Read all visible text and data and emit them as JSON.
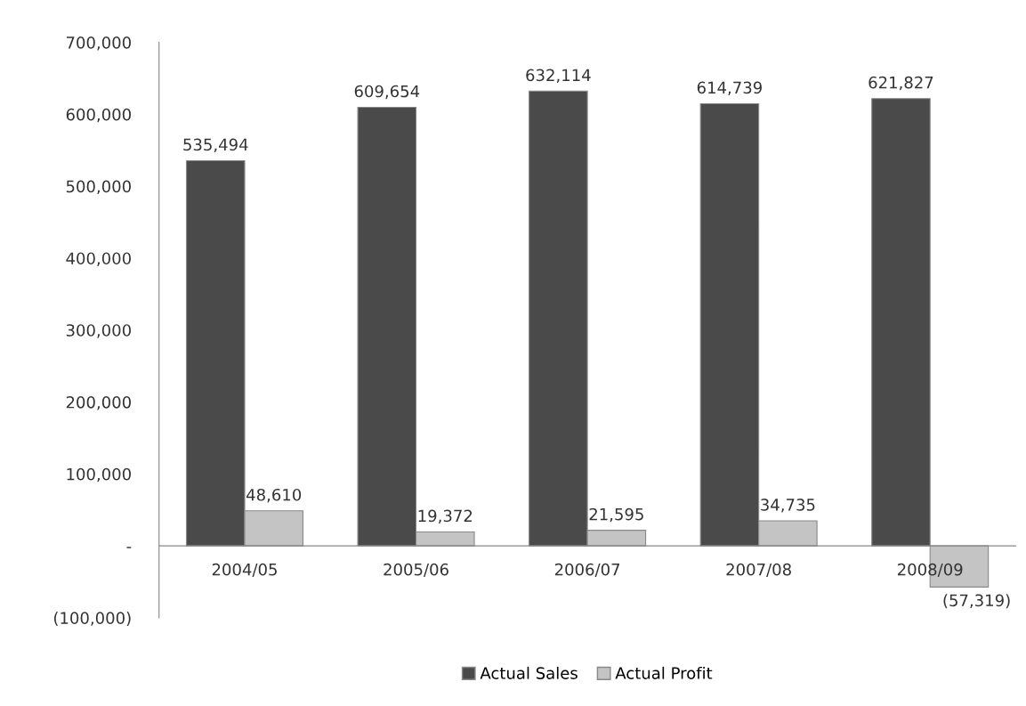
{
  "chart_data": {
    "type": "bar",
    "categories": [
      "2004/05",
      "2005/06",
      "2006/07",
      "2007/08",
      "2008/09"
    ],
    "series": [
      {
        "name": "Actual Sales",
        "color": "#4a4a4a",
        "values": [
          535494,
          609654,
          632114,
          614739,
          621827
        ],
        "value_labels": [
          "535,494",
          "609,654",
          "632,114",
          "614,739",
          "621,827"
        ]
      },
      {
        "name": "Actual Profit",
        "color": "#c4c4c4",
        "values": [
          48610,
          19372,
          21595,
          34735,
          -57319
        ],
        "value_labels": [
          "48,610",
          "19,372",
          "21,595",
          "34,735",
          "(57,319)"
        ]
      }
    ],
    "ylim": [
      -100000,
      700000
    ],
    "yticks": [
      {
        "value": -100000,
        "label": "(100,000)"
      },
      {
        "value": 0,
        "label": "-"
      },
      {
        "value": 100000,
        "label": "100,000"
      },
      {
        "value": 200000,
        "label": "200,000"
      },
      {
        "value": 300000,
        "label": "300,000"
      },
      {
        "value": 400000,
        "label": "400,000"
      },
      {
        "value": 500000,
        "label": "500,000"
      },
      {
        "value": 600000,
        "label": "600,000"
      },
      {
        "value": 700000,
        "label": "700,000"
      }
    ],
    "grid": false,
    "legend": "bottom"
  }
}
